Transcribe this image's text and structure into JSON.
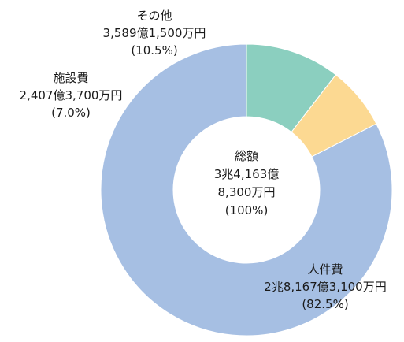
{
  "chart_data": {
    "type": "pie",
    "donut": true,
    "center_label": {
      "title": "総額",
      "line1": "3兆4,163億",
      "line2": "8,300万円",
      "line3": "(100%)"
    },
    "slices": [
      {
        "name": "人件費",
        "amount": "2兆8,167億3,100万円",
        "percent_label": "(82.5%)",
        "value": 82.5,
        "color": "#a6bfe3"
      },
      {
        "name": "施設費",
        "amount": "2,407億3,700万円",
        "percent_label": "(7.0%)",
        "value": 7.0,
        "color": "#fcd992"
      },
      {
        "name": "その他",
        "amount": "3,589億1,500万円",
        "percent_label": "(10.5%)",
        "value": 10.5,
        "color": "#8bcfbf"
      }
    ]
  }
}
